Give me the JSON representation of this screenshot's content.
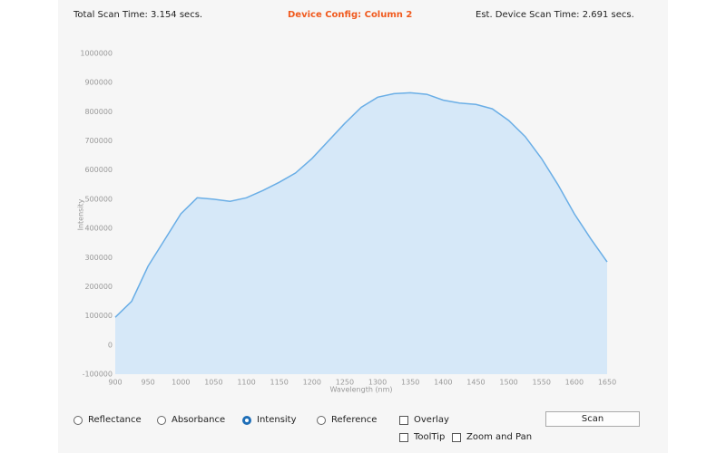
{
  "header": {
    "total_scan_time": "Total Scan Time: 3.154 secs.",
    "device_config": "Device Config: Column 2",
    "est_scan_time": "Est. Device Scan Time: 2.691 secs."
  },
  "chart_data": {
    "type": "area",
    "x_label": "Wavelength (nm)",
    "y_label": "Intensity",
    "x": [
      900,
      925,
      950,
      975,
      1000,
      1025,
      1050,
      1075,
      1100,
      1125,
      1150,
      1175,
      1200,
      1225,
      1250,
      1275,
      1300,
      1325,
      1350,
      1375,
      1400,
      1425,
      1450,
      1475,
      1500,
      1525,
      1550,
      1575,
      1600,
      1625,
      1650
    ],
    "values": [
      95000,
      150000,
      270000,
      360000,
      450000,
      505000,
      500000,
      493000,
      505000,
      530000,
      558000,
      590000,
      640000,
      700000,
      760000,
      815000,
      850000,
      862000,
      865000,
      860000,
      840000,
      830000,
      825000,
      810000,
      770000,
      715000,
      640000,
      550000,
      450000,
      365000,
      285000
    ],
    "color": "#6aaee6",
    "fill": "#d6e8f8",
    "xlim": [
      900,
      1650
    ],
    "xticks": [
      900,
      950,
      1000,
      1050,
      1100,
      1150,
      1200,
      1250,
      1300,
      1350,
      1400,
      1450,
      1500,
      1550,
      1600,
      1650
    ],
    "ylim": [
      -100000,
      1000000
    ],
    "yticks": [
      -100000,
      0,
      100000,
      200000,
      300000,
      400000,
      500000,
      600000,
      700000,
      800000,
      900000,
      1000000
    ],
    "grid": false
  },
  "controls": {
    "radios": [
      {
        "label": "Reflectance",
        "checked": false
      },
      {
        "label": "Absorbance",
        "checked": false
      },
      {
        "label": "Intensity",
        "checked": true
      },
      {
        "label": "Reference",
        "checked": false
      }
    ],
    "checkboxes": [
      {
        "label": "Overlay",
        "checked": false
      },
      {
        "label": "ToolTip",
        "checked": false
      },
      {
        "label": "Zoom and Pan",
        "checked": false
      }
    ],
    "button": "Scan"
  }
}
